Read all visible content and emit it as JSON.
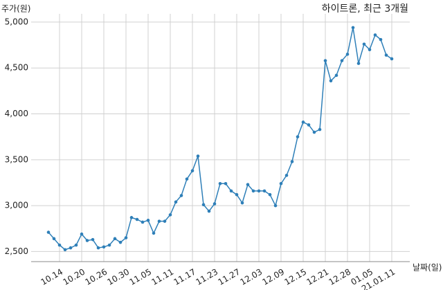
{
  "chart_data": {
    "type": "line",
    "title": "하이트론, 최근 3개월",
    "y_label": "주가(원)",
    "x_label": "날짜(일)",
    "categories": [
      null,
      null,
      "10.14",
      null,
      null,
      null,
      "10.20",
      null,
      null,
      null,
      "10.26",
      null,
      null,
      null,
      "10.30",
      null,
      null,
      null,
      "11.05",
      null,
      null,
      null,
      "11.11",
      null,
      null,
      null,
      "11.17",
      null,
      null,
      null,
      "11.23",
      null,
      null,
      null,
      "11.27",
      null,
      null,
      null,
      "12.03",
      null,
      null,
      null,
      "12.09",
      null,
      null,
      null,
      "12.15",
      null,
      null,
      null,
      "12.21",
      null,
      null,
      null,
      "12.28",
      null,
      null,
      null,
      "01.05",
      null,
      null,
      null,
      "21.01.11"
    ],
    "series": [
      {
        "name": "주가",
        "color": "#2e7fb8",
        "values": [
          2710,
          2640,
          2570,
          2520,
          2540,
          2570,
          2690,
          2620,
          2630,
          2540,
          2550,
          2570,
          2640,
          2600,
          2650,
          2870,
          2850,
          2820,
          2840,
          2700,
          2830,
          2830,
          2900,
          3040,
          3110,
          3290,
          3380,
          3540,
          3010,
          2940,
          3020,
          3240,
          3240,
          3160,
          3120,
          3030,
          3230,
          3160,
          3160,
          3160,
          3120,
          3000,
          3240,
          3330,
          3480,
          3750,
          3910,
          3880,
          3800,
          3830,
          4580,
          4360,
          4420,
          4580,
          4650,
          4940,
          4550,
          4760,
          4700,
          4860,
          4810,
          4640,
          4600
        ]
      }
    ],
    "ylim": [
      2390,
      5090
    ],
    "yticks": [
      {
        "value": 2500,
        "label": "2,500"
      },
      {
        "value": 3000,
        "label": "3,000"
      },
      {
        "value": 3500,
        "label": "3,500"
      },
      {
        "value": 4000,
        "label": "4,000"
      },
      {
        "value": 4500,
        "label": "4,500"
      },
      {
        "value": 5000,
        "label": "5,000"
      }
    ],
    "grid": true
  }
}
